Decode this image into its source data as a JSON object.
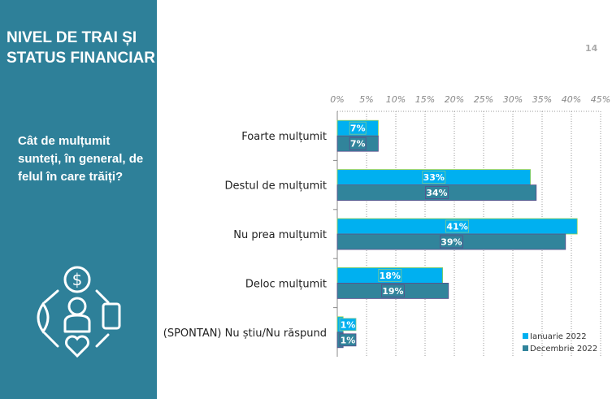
{
  "sidebar": {
    "title_line1": "NIVEL DE TRAI ȘI",
    "title_line2": "STATUS FINANCIAR",
    "question": "Cât de mulțumit sunteți, în general, de felul în care trăiți?",
    "icon": "person-finance-circle-icon"
  },
  "page_number": "14",
  "colors": {
    "sidebar": "#2e8099",
    "series1": "#00b0f0",
    "series2": "#31849b"
  },
  "chart_data": {
    "type": "bar",
    "orientation": "horizontal",
    "categories": [
      "Foarte mulțumit",
      "Destul de mulțumit",
      "Nu prea mulțumit",
      "Deloc mulțumit",
      "(SPONTAN) Nu știu/Nu răspund"
    ],
    "series": [
      {
        "name": "Ianuarie 2022",
        "values": [
          7,
          33,
          41,
          18,
          1
        ],
        "labels": [
          "7%",
          "33%",
          "41%",
          "18%",
          "1%"
        ]
      },
      {
        "name": "Decembrie 2022",
        "values": [
          7,
          34,
          39,
          19,
          1
        ],
        "labels": [
          "7%",
          "34%",
          "39%",
          "19%",
          "1%"
        ]
      }
    ],
    "xlim": [
      0,
      45
    ],
    "ticks": [
      "0%",
      "5%",
      "10%",
      "15%",
      "20%",
      "25%",
      "30%",
      "35%",
      "40%",
      "45%"
    ],
    "grid": true,
    "legend": "bottom-right"
  }
}
